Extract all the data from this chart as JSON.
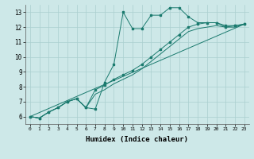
{
  "xlabel": "Humidex (Indice chaleur)",
  "bg_color": "#cde8e8",
  "grid_color": "#aacfcf",
  "line_color": "#1a7a6e",
  "xlim": [
    -0.5,
    23.5
  ],
  "ylim": [
    5.5,
    13.5
  ],
  "series1_x": [
    0,
    1,
    2,
    3,
    4,
    5,
    6,
    7,
    8,
    9,
    10,
    11,
    12,
    13,
    14,
    15,
    16,
    17,
    18,
    19,
    20,
    21,
    22,
    23
  ],
  "series1_y": [
    6.0,
    5.9,
    6.3,
    6.6,
    7.0,
    7.2,
    6.6,
    6.5,
    8.3,
    9.5,
    13.0,
    11.9,
    11.9,
    12.8,
    12.8,
    13.3,
    13.3,
    12.7,
    12.3,
    12.3,
    12.3,
    12.0,
    12.1,
    12.2
  ],
  "series2_x": [
    0,
    23
  ],
  "series2_y": [
    6.0,
    12.2
  ],
  "series3_x": [
    0,
    1,
    2,
    3,
    4,
    5,
    6,
    7,
    8,
    9,
    10,
    11,
    12,
    13,
    14,
    15,
    16,
    17,
    18,
    19,
    20,
    21,
    22,
    23
  ],
  "series3_y": [
    6.0,
    5.9,
    6.3,
    6.6,
    7.0,
    7.2,
    6.6,
    7.8,
    8.1,
    8.5,
    8.8,
    9.1,
    9.5,
    10.0,
    10.5,
    11.0,
    11.5,
    12.0,
    12.2,
    12.3,
    12.3,
    12.1,
    12.1,
    12.2
  ],
  "series4_x": [
    0,
    1,
    2,
    3,
    4,
    5,
    6,
    7,
    8,
    9,
    10,
    11,
    12,
    13,
    14,
    15,
    16,
    17,
    18,
    19,
    20,
    21,
    22,
    23
  ],
  "series4_y": [
    6.0,
    5.9,
    6.3,
    6.6,
    7.0,
    7.2,
    6.6,
    7.5,
    7.8,
    8.2,
    8.5,
    8.8,
    9.2,
    9.7,
    10.2,
    10.7,
    11.2,
    11.7,
    11.9,
    12.0,
    12.1,
    12.0,
    12.0,
    12.2
  ],
  "yticks": [
    6,
    7,
    8,
    9,
    10,
    11,
    12,
    13
  ]
}
